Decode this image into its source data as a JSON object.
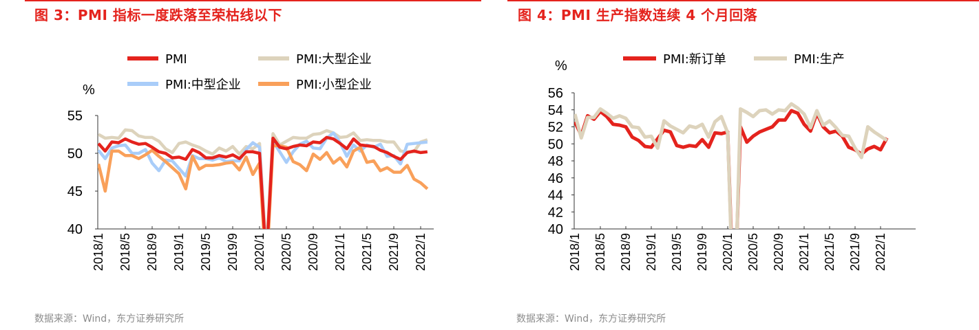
{
  "chart_data": [
    {
      "type": "line",
      "title": "图 3：PMI 指标一度跌落至荣枯线以下",
      "ylabel": "%",
      "ylim": [
        40,
        55
      ],
      "yticks": [
        "40",
        "45",
        "50",
        "55"
      ],
      "x_start": "2018/1",
      "x_end": "2022/2",
      "x_ticks": [
        "2018/1",
        "2018/5",
        "2018/9",
        "2019/1",
        "2019/5",
        "2019/9",
        "2020/1",
        "2020/5",
        "2020/9",
        "2021/1",
        "2021/5",
        "2021/9",
        "2022/1"
      ],
      "legend": "top",
      "series": [
        {
          "name": "PMI",
          "color": "#e4231d",
          "values": [
            51.3,
            50.3,
            51.5,
            51.4,
            51.9,
            51.5,
            51.2,
            51.3,
            50.8,
            50.2,
            50.0,
            49.4,
            49.5,
            49.2,
            50.5,
            50.1,
            49.4,
            49.4,
            49.7,
            49.5,
            49.8,
            49.3,
            50.2,
            50.2,
            50.0,
            35.7,
            52.0,
            50.8,
            50.6,
            50.9,
            51.1,
            51.0,
            51.5,
            51.4,
            52.1,
            51.9,
            51.3,
            50.6,
            51.9,
            51.1,
            51.0,
            50.9,
            50.4,
            50.1,
            49.6,
            49.2,
            50.1,
            50.3,
            50.1,
            50.2
          ]
        },
        {
          "name": "PMI:大型企业",
          "color": "#ddd3bc",
          "values": [
            52.5,
            52.0,
            52.1,
            52.0,
            53.1,
            53.0,
            52.3,
            52.1,
            52.1,
            51.6,
            50.6,
            50.1,
            51.3,
            51.5,
            51.1,
            50.8,
            50.3,
            49.9,
            50.7,
            50.3,
            50.9,
            49.9,
            50.9,
            50.6,
            51.3,
            36.5,
            52.6,
            51.1,
            51.6,
            52.1,
            52.0,
            52.0,
            52.5,
            52.6,
            53.0,
            52.7,
            52.1,
            52.2,
            52.7,
            51.7,
            51.8,
            51.7,
            51.7,
            51.5,
            51.5,
            50.3,
            50.2,
            50.2,
            51.5,
            51.8
          ]
        },
        {
          "name": "PMI:中型企业",
          "color": "#a9cdf9",
          "values": [
            50.4,
            49.3,
            50.7,
            51.0,
            51.1,
            50.0,
            50.0,
            50.5,
            48.7,
            47.7,
            49.1,
            49.0,
            48.0,
            47.0,
            49.7,
            49.3,
            49.3,
            49.1,
            49.4,
            48.9,
            49.0,
            49.0,
            50.5,
            51.4,
            50.8,
            35.5,
            51.6,
            50.2,
            48.8,
            50.2,
            51.2,
            51.6,
            50.7,
            50.6,
            52.0,
            52.7,
            51.4,
            49.6,
            51.1,
            50.3,
            51.1,
            50.8,
            51.2,
            49.6,
            49.7,
            48.6,
            51.2,
            51.3,
            51.4,
            51.5
          ]
        },
        {
          "name": "PMI:小型企业",
          "color": "#f9a05a",
          "values": [
            48.6,
            45.0,
            50.3,
            50.3,
            49.7,
            49.7,
            49.3,
            49.8,
            50.4,
            49.6,
            48.9,
            48.1,
            47.3,
            45.3,
            49.6,
            47.9,
            48.4,
            48.4,
            48.5,
            48.7,
            48.8,
            47.8,
            49.5,
            47.2,
            48.7,
            34.1,
            51.0,
            51.0,
            50.8,
            48.9,
            48.5,
            47.7,
            49.9,
            49.2,
            50.1,
            48.7,
            49.4,
            48.2,
            50.3,
            50.8,
            48.8,
            49.0,
            47.7,
            48.1,
            47.5,
            47.5,
            48.4,
            46.6,
            46.1,
            45.3
          ]
        }
      ]
    },
    {
      "type": "line",
      "title": "图 4：PMI 生产指数连续 4 个月回落",
      "ylabel": "%",
      "ylim": [
        40,
        56
      ],
      "yticks": [
        "40",
        "42",
        "44",
        "46",
        "48",
        "50",
        "52",
        "54",
        "56"
      ],
      "x_start": "2018/1",
      "x_end": "2022/2",
      "x_ticks": [
        "2018/1",
        "2018/5",
        "2018/9",
        "2019/1",
        "2019/5",
        "2019/9",
        "2020/1",
        "2020/5",
        "2020/9",
        "2021/1",
        "2021/5",
        "2021/9",
        "2022/1"
      ],
      "legend": "top",
      "series": [
        {
          "name": "PMI:新订单",
          "color": "#e4231d",
          "values": [
            52.6,
            51.0,
            53.3,
            52.9,
            53.8,
            53.2,
            52.3,
            52.2,
            52.0,
            50.8,
            50.4,
            49.7,
            49.6,
            50.6,
            51.6,
            51.4,
            49.8,
            49.6,
            49.8,
            49.7,
            50.5,
            49.6,
            51.3,
            51.2,
            51.4,
            29.3,
            52.0,
            50.2,
            50.9,
            51.4,
            51.7,
            52.0,
            52.8,
            52.8,
            53.9,
            53.6,
            52.3,
            51.5,
            53.6,
            52.0,
            51.3,
            51.5,
            50.9,
            49.6,
            49.3,
            48.8,
            49.4,
            49.7,
            49.3,
            50.7
          ]
        },
        {
          "name": "PMI:生产",
          "color": "#ddd3bc",
          "values": [
            53.5,
            50.7,
            53.1,
            53.1,
            54.1,
            53.6,
            53.0,
            53.3,
            53.0,
            52.0,
            51.9,
            50.8,
            50.9,
            49.5,
            52.7,
            52.1,
            51.7,
            51.3,
            52.1,
            51.9,
            52.3,
            50.8,
            52.6,
            53.2,
            51.3,
            27.8,
            54.1,
            53.7,
            53.2,
            53.9,
            54.0,
            53.5,
            54.0,
            53.9,
            54.7,
            54.2,
            53.5,
            51.9,
            53.9,
            52.2,
            52.7,
            51.9,
            51.0,
            50.9,
            49.5,
            48.4,
            52.0,
            51.4,
            50.9,
            50.4
          ]
        }
      ]
    }
  ],
  "source_left": "数据来源：Wind，东方证券研究所",
  "source_right": "数据来源：Wind，东方证券研究所"
}
